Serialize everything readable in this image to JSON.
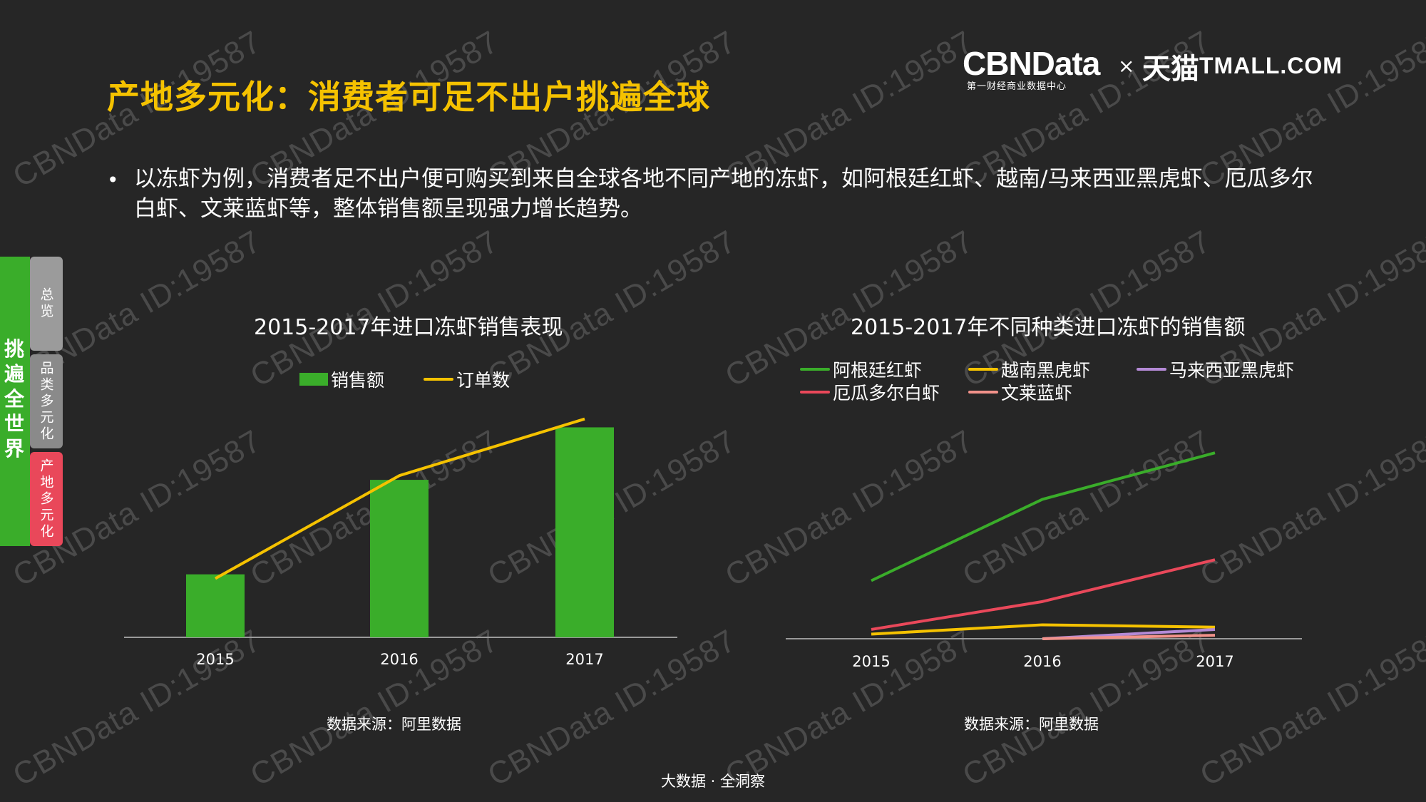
{
  "watermark": "CBNData ID:19587",
  "header": {
    "title": "产地多元化：消费者可足不出户挑遍全球",
    "logo": {
      "cbndata": "CBNData",
      "cbndata_sub": "第一财经商业数据中心",
      "times": "×",
      "tmall_cn": "天猫",
      "tmall_en": "TMALL.COM"
    }
  },
  "bullet": {
    "dot": "•",
    "text": "以冻虾为例，消费者足不出户便可购买到来自全球各地不同产地的冻虾，如阿根廷红虾、越南/马来西亚黑虎虾、厄瓜多尔白虾、文莱蓝虾等，整体销售额呈现强力增长趋势。"
  },
  "side_nav": {
    "main_label": "挑遍全世界",
    "tabs": [
      {
        "label": "总览"
      },
      {
        "label": "品类多元化"
      },
      {
        "label": "产地多元化"
      }
    ]
  },
  "colors": {
    "green": "#3aad2a",
    "yellow": "#f5c200",
    "purple": "#b48ad6",
    "red": "#e9485a",
    "salmon": "#f2928a",
    "axis": "#9a9a9a"
  },
  "chart_data": [
    {
      "type": "bar",
      "title": "2015-2017年进口冻虾销售表现",
      "categories": [
        "2015",
        "2016",
        "2017"
      ],
      "series": [
        {
          "name": "销售额",
          "kind": "bar",
          "values": [
            30,
            75,
            100
          ]
        },
        {
          "name": "订单数",
          "kind": "line",
          "values": [
            28,
            77,
            104
          ]
        }
      ],
      "ylim": [
        0,
        110
      ],
      "grid": false,
      "legend": "top",
      "source": "数据来源：阿里数据"
    },
    {
      "type": "line",
      "title": "2015-2017年不同种类进口冻虾的销售额",
      "categories": [
        "2015",
        "2016",
        "2017"
      ],
      "series": [
        {
          "name": "阿根廷红虾",
          "values": [
            25,
            60,
            80
          ]
        },
        {
          "name": "越南黑虎虾",
          "values": [
            2,
            6,
            5
          ]
        },
        {
          "name": "马来西亚黑虎虾",
          "values": [
            0,
            0,
            4
          ]
        },
        {
          "name": "厄瓜多尔白虾",
          "values": [
            4,
            16,
            34
          ]
        },
        {
          "name": "文莱蓝虾",
          "values": [
            0,
            0,
            1.5
          ]
        }
      ],
      "ylim": [
        0,
        100
      ],
      "grid": false,
      "legend": "top",
      "source": "数据来源：阿里数据"
    }
  ],
  "footer": "大数据 · 全洞察"
}
